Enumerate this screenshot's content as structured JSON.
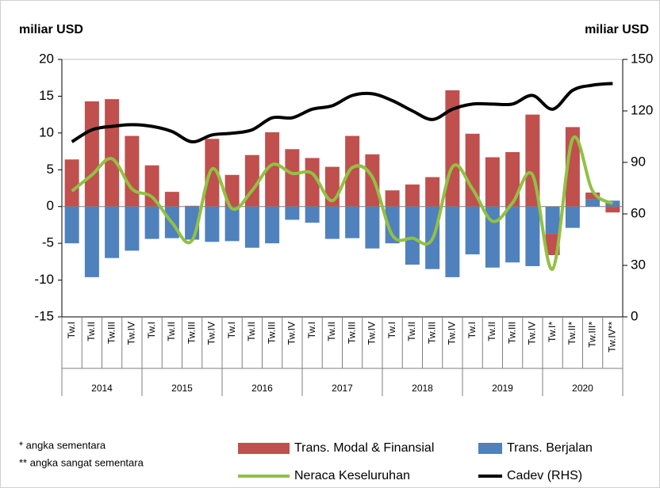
{
  "chart_data": {
    "type": "bar",
    "y_label": "miliar USD",
    "y2_label": "miliar USD",
    "categories": [
      "Tw.I",
      "Tw.II",
      "Tw.III",
      "Tw.IV",
      "Tw.I",
      "Tw.II",
      "Tw.III",
      "Tw.IV",
      "Tw.I",
      "Tw.II",
      "Tw.III",
      "Tw.IV",
      "Tw.I",
      "Tw.II",
      "Tw.III",
      "Tw.IV",
      "Tw.I",
      "Tw.II",
      "Tw.III",
      "Tw.IV",
      "Tw.I",
      "Tw.II",
      "Tw.III",
      "Tw.IV",
      "Tw.I*",
      "Tw.II*",
      "Tw.III*",
      "Tw.IV**"
    ],
    "years": [
      "2014",
      "2015",
      "2016",
      "2017",
      "2018",
      "2019",
      "2020"
    ],
    "series": [
      {
        "name": "Trans. Berjalan",
        "type": "bar",
        "color": "#4f81bd",
        "values": [
          -5.0,
          -9.6,
          -7.0,
          -6.0,
          -4.4,
          -4.3,
          -4.5,
          -4.8,
          -4.7,
          -5.6,
          -5.0,
          -1.8,
          -2.2,
          -4.4,
          -4.3,
          -5.7,
          -5.0,
          -7.9,
          -8.5,
          -9.6,
          -6.5,
          -8.3,
          -7.6,
          -8.1,
          -3.7,
          -2.9,
          1.0,
          0.8
        ]
      },
      {
        "name": "Trans. Modal & Finansial",
        "type": "bar",
        "color": "#c0504d",
        "values": [
          6.4,
          14.3,
          14.6,
          9.6,
          5.6,
          2.0,
          0.1,
          9.2,
          4.3,
          7.0,
          10.1,
          7.8,
          6.6,
          5.4,
          9.6,
          7.1,
          2.2,
          3.0,
          4.0,
          15.8,
          9.9,
          6.7,
          7.4,
          12.5,
          -2.9,
          10.8,
          0.9,
          -0.8
        ]
      },
      {
        "name": "Neraca Keseluruhan",
        "type": "line",
        "color": "#92c143",
        "values": [
          2.1,
          4.3,
          6.5,
          2.4,
          1.3,
          -2.2,
          -4.6,
          5.1,
          -0.3,
          2.2,
          5.7,
          4.5,
          4.5,
          0.8,
          5.3,
          4.0,
          -3.9,
          -4.3,
          -4.4,
          5.4,
          2.4,
          -2.0,
          0.5,
          4.3,
          -8.5,
          9.2,
          2.1,
          0.4
        ]
      },
      {
        "name": "Cadev (RHS)",
        "type": "line",
        "axis": "y2",
        "color": "#000000",
        "values": [
          102,
          109,
          111,
          112,
          111,
          108,
          102,
          106,
          107,
          109,
          116,
          116,
          121,
          123,
          129,
          130,
          126,
          120,
          115,
          121,
          124,
          124,
          124,
          129,
          121,
          132,
          135,
          136
        ]
      }
    ],
    "ylim": [
      -15,
      20
    ],
    "yticks": [
      -15,
      -10,
      -5,
      0,
      5,
      10,
      15,
      20
    ],
    "y2lim": [
      0,
      150
    ],
    "y2ticks": [
      0,
      30,
      60,
      90,
      120,
      150
    ],
    "notes": [
      "* angka sementara",
      "** angka sangat sementara"
    ]
  }
}
